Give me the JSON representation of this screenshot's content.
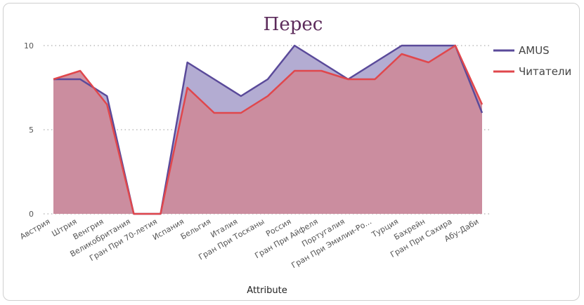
{
  "chart_data": {
    "type": "area",
    "title": "Перес",
    "xlabel": "Attribute",
    "ylabel": "",
    "ylim": [
      0,
      10
    ],
    "yticks": [
      0,
      5,
      10
    ],
    "grid": true,
    "legend_position": "right",
    "categories": [
      "Австрия",
      "Штрия",
      "Венгрия",
      "Великобритания",
      "Гран При 70-летия",
      "Испания",
      "Бельгия",
      "Италия",
      "Гран При Тосканы",
      "Россия",
      "Гран При Айфеля",
      "Португалия",
      "Гран При Эмилии-Ро...",
      "Турция",
      "Бахрейн",
      "Гран При Сахира",
      "Абу-Даби"
    ],
    "series": [
      {
        "name": "AMUS",
        "color": "#5a4a9a",
        "fill": "#b3acd2",
        "values": [
          8,
          8,
          7,
          0,
          0,
          9,
          8,
          7,
          8,
          10,
          9,
          8,
          9,
          10,
          10,
          10,
          6
        ]
      },
      {
        "name": "Читатели",
        "color": "#e0474c",
        "fill": "#cd8a9a",
        "values": [
          8,
          8.5,
          6.5,
          0,
          0,
          7.5,
          6,
          6,
          7,
          8.5,
          8.5,
          8,
          8,
          9.5,
          9,
          10,
          6.5
        ]
      }
    ]
  }
}
